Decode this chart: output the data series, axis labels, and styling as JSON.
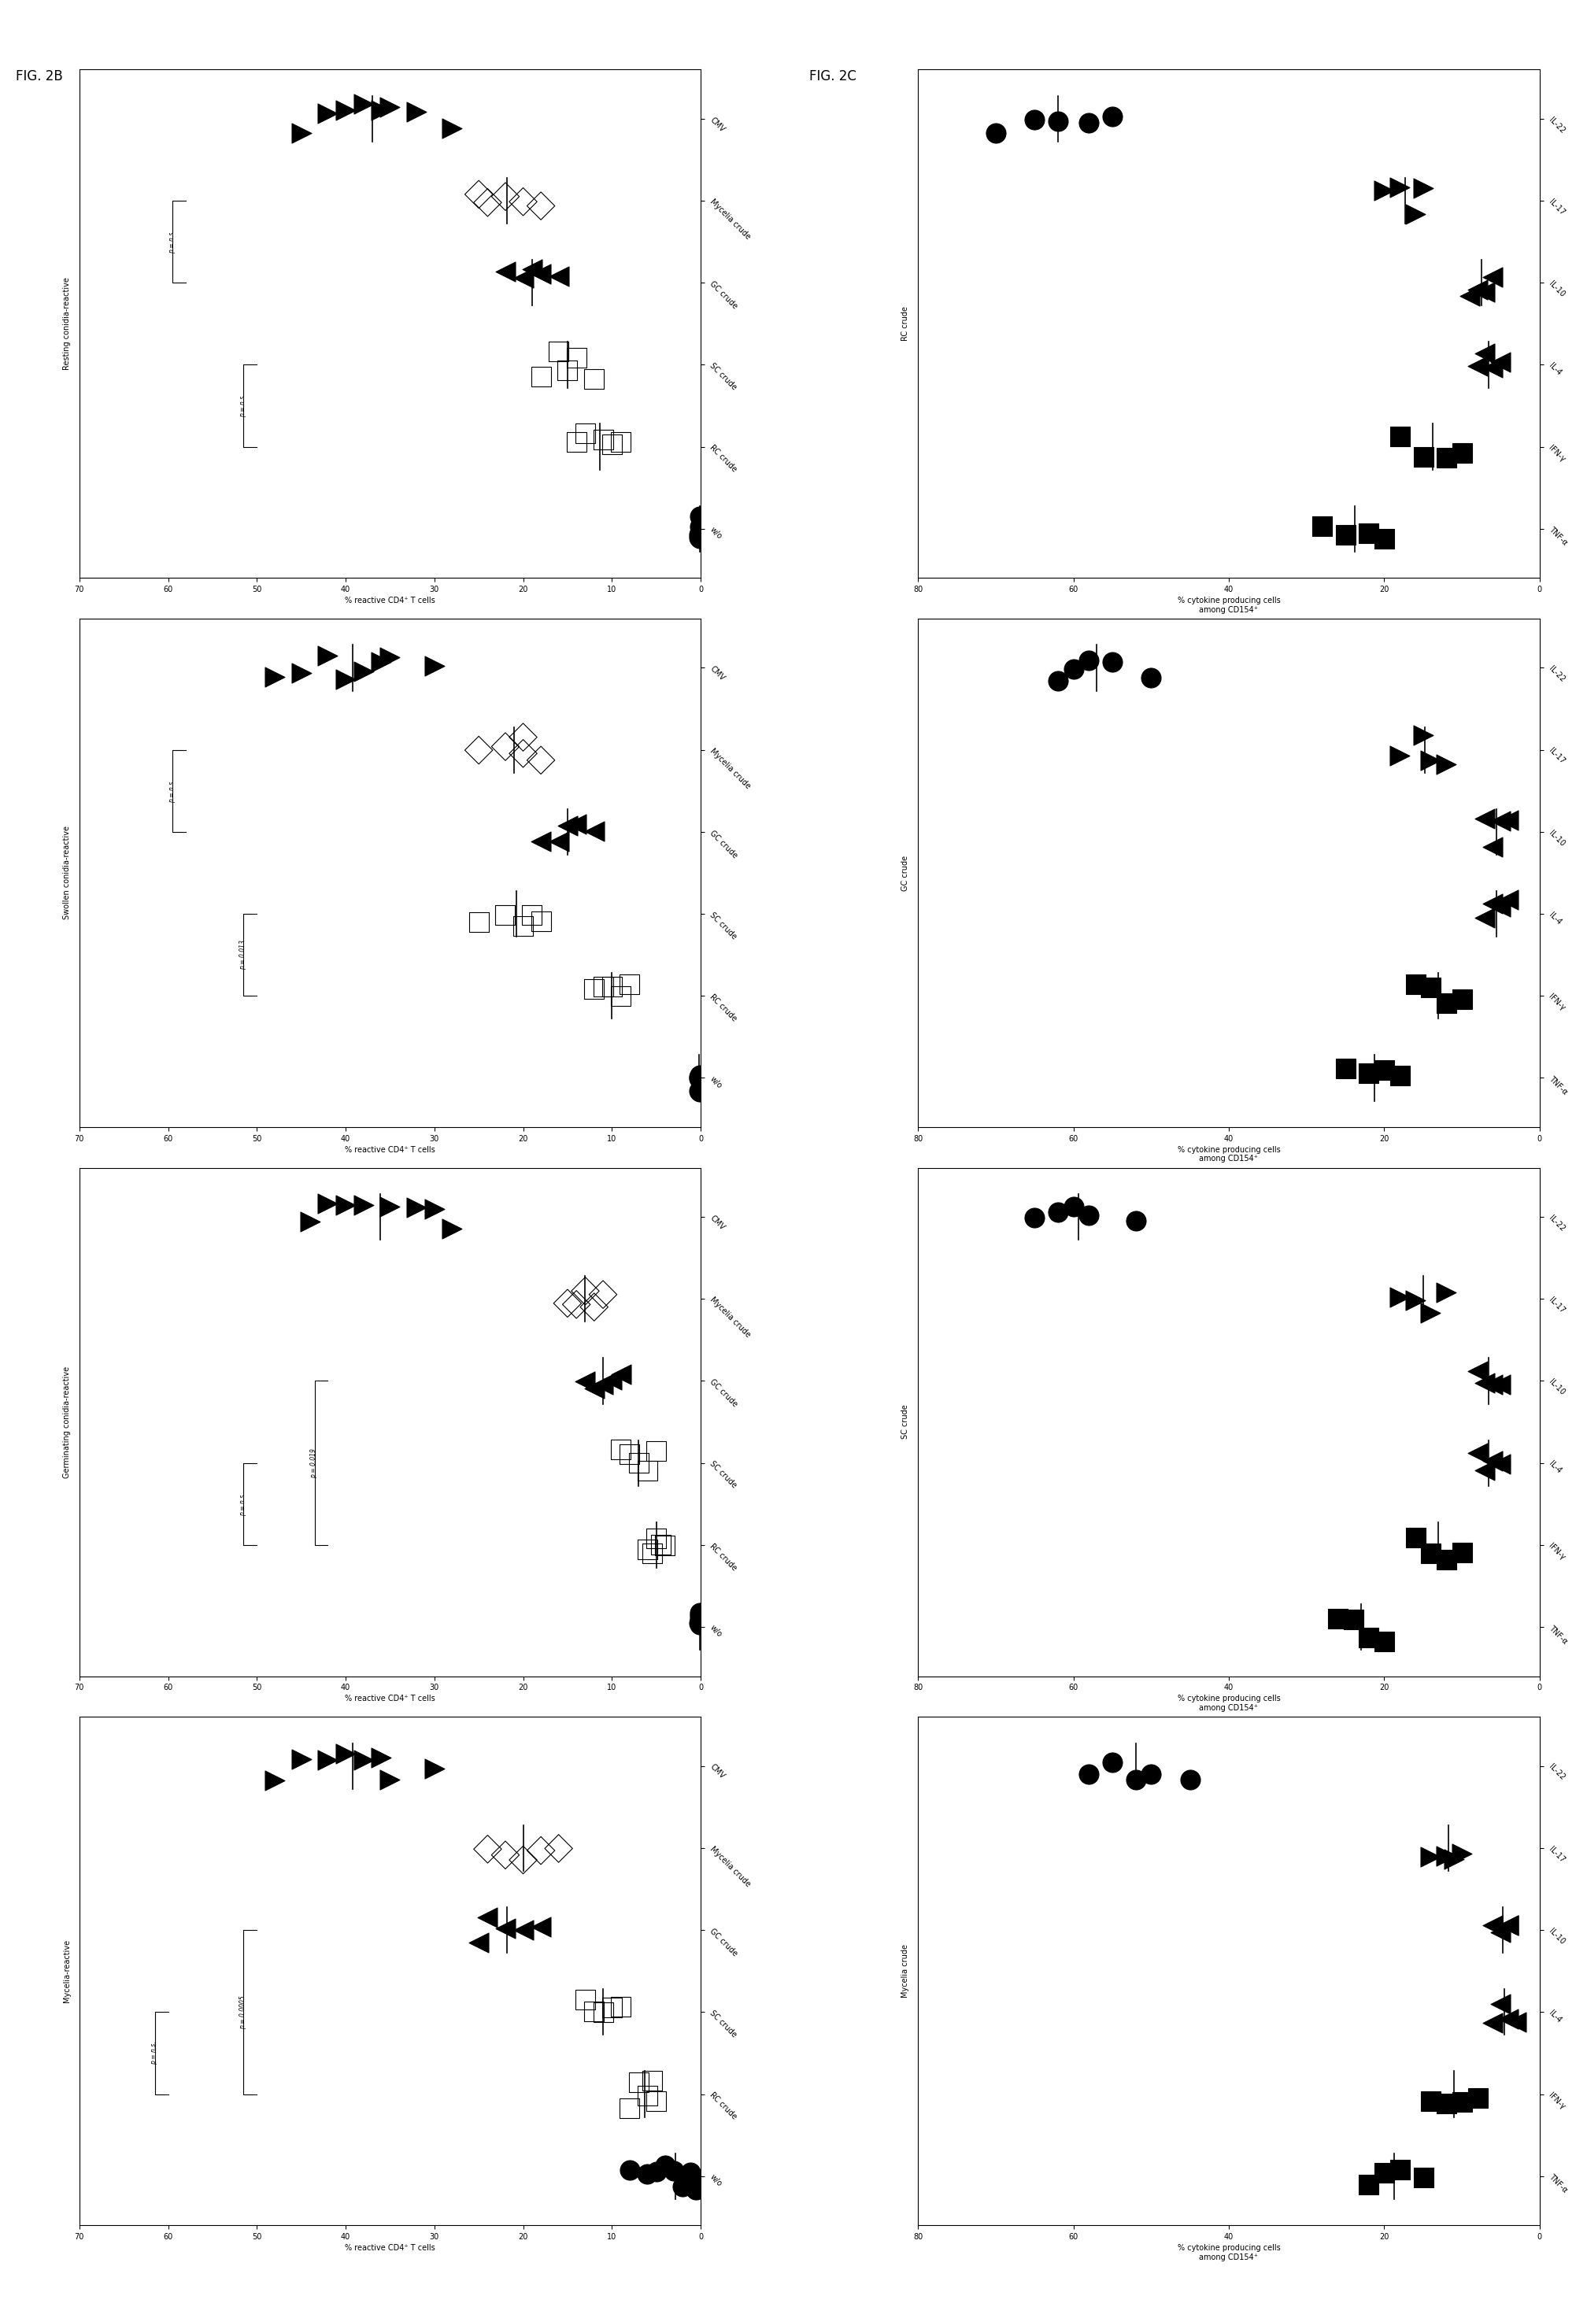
{
  "background_color": "#ffffff",
  "fig2b_panel_titles": [
    "Resting conidia-reactive",
    "Swollen conidia-reactive",
    "Germinating conidia-reactive",
    "Mycelia-reactive"
  ],
  "fig2c_panel_titles": [
    "RC crude",
    "GC crude",
    "SC crude",
    "Mycelia crude"
  ],
  "cats_2b": [
    "w/o",
    "RC crude",
    "SC crude",
    "GC crude",
    "Mycelia crude",
    "CMV"
  ],
  "cytokines_2c": [
    "TNF-α",
    "IFN-γ",
    "IL-4",
    "IL-10",
    "IL-17",
    "IL-22"
  ],
  "ylabel_2b": "% reactive CD4⁺ T cells",
  "ylabel_2c": "% cytokine producing cells\namong CD154⁺",
  "xlim_2b": [
    0,
    70
  ],
  "xlim_2c": [
    0,
    80
  ],
  "xticks_2b": [
    0,
    10,
    20,
    30,
    40,
    50,
    60,
    70
  ],
  "xticks_2c": [
    0,
    20,
    40,
    60,
    80
  ],
  "fig_label_2b": "FIG. 2B",
  "fig_label_2c": "FIG. 2C",
  "fig2b_data": [
    [
      [
        0.1,
        0.15,
        0.08,
        0.2,
        0.12
      ],
      [
        10,
        13,
        14,
        11,
        9
      ],
      [
        14,
        16,
        12,
        18,
        15
      ],
      [
        20,
        18,
        22,
        19,
        16
      ],
      [
        22,
        25,
        20,
        18,
        24
      ],
      [
        32,
        38,
        42,
        36,
        28,
        45,
        40,
        35
      ]
    ],
    [
      [
        0.1,
        0.2,
        0.15,
        0.1,
        0.18
      ],
      [
        8,
        12,
        10,
        9,
        11
      ],
      [
        20,
        25,
        18,
        22,
        19
      ],
      [
        15,
        18,
        12,
        16,
        14
      ],
      [
        20,
        22,
        18,
        25,
        20
      ],
      [
        35,
        42,
        38,
        45,
        30,
        48,
        40,
        36
      ]
    ],
    [
      [
        0.08,
        0.12,
        0.1,
        0.15,
        0.09
      ],
      [
        4,
        6,
        5,
        4.5,
        5.5
      ],
      [
        6,
        8,
        7,
        5,
        9
      ],
      [
        10,
        12,
        9,
        11,
        13
      ],
      [
        12,
        15,
        11,
        14,
        13
      ],
      [
        30,
        35,
        42,
        28,
        38,
        44,
        32,
        40
      ]
    ],
    [
      [
        0.5,
        1.0,
        0.8,
        1.2,
        0.7,
        2.0,
        1.5,
        3.0,
        4.0,
        5.0,
        6.0,
        8.0
      ],
      [
        5,
        7,
        6,
        8,
        5.5
      ],
      [
        10,
        12,
        9,
        11,
        13
      ],
      [
        20,
        25,
        22,
        18,
        24
      ],
      [
        18,
        22,
        20,
        16,
        24
      ],
      [
        35,
        42,
        38,
        45,
        30,
        48,
        40,
        36
      ]
    ]
  ],
  "fig2c_data": [
    [
      [
        20,
        25,
        28,
        22
      ],
      [
        12,
        15,
        18,
        10
      ],
      [
        5,
        8,
        6,
        7
      ],
      [
        6,
        8,
        9,
        7
      ],
      [
        15,
        20,
        18,
        16
      ],
      [
        55,
        65,
        70,
        58,
        62
      ]
    ],
    [
      [
        18,
        22,
        25,
        20
      ],
      [
        10,
        14,
        16,
        12
      ],
      [
        4,
        6,
        5,
        7
      ],
      [
        4,
        5,
        7,
        6
      ],
      [
        12,
        18,
        15,
        14
      ],
      [
        50,
        58,
        62,
        55,
        60
      ]
    ],
    [
      [
        20,
        24,
        26,
        22
      ],
      [
        12,
        16,
        14,
        10
      ],
      [
        5,
        7,
        6,
        8
      ],
      [
        6,
        7,
        8,
        5
      ],
      [
        14,
        18,
        16,
        12
      ],
      [
        52,
        60,
        65,
        58,
        62
      ]
    ],
    [
      [
        15,
        20,
        22,
        18
      ],
      [
        8,
        12,
        14,
        10
      ],
      [
        3,
        5,
        4,
        6
      ],
      [
        4,
        5,
        6,
        4
      ],
      [
        10,
        14,
        12,
        11
      ],
      [
        45,
        52,
        58,
        50,
        55
      ]
    ]
  ],
  "annotations_2b": [
    [
      [
        "p = n.s.",
        1,
        2,
        52,
        50
      ],
      [
        "p = n.s.",
        3,
        4,
        60,
        58
      ]
    ],
    [
      [
        "p = 0.013",
        1,
        2,
        52,
        50
      ],
      [
        "p = n.s.",
        3,
        4,
        60,
        58
      ]
    ],
    [
      [
        "p = n.s.",
        1,
        2,
        52,
        50
      ],
      [
        "p = 0.019",
        1,
        3,
        44,
        42
      ]
    ],
    [
      [
        "p = n.s.",
        1,
        2,
        62,
        60
      ],
      [
        "p = 0.0005",
        1,
        3,
        52,
        50
      ]
    ]
  ],
  "cat_markers_2b": [
    [
      "o",
      "black",
      "black"
    ],
    [
      "s",
      "none",
      "black"
    ],
    [
      "s",
      "none",
      "black"
    ],
    [
      "<",
      "black",
      "black"
    ],
    [
      "D",
      "none",
      "black"
    ],
    [
      ">",
      "black",
      "black"
    ]
  ],
  "cat_markers_2c": [
    [
      "s",
      "black",
      "black"
    ],
    [
      "s",
      "black",
      "black"
    ],
    [
      "<",
      "black",
      "black"
    ],
    [
      "<",
      "black",
      "black"
    ],
    [
      ">",
      "black",
      "black"
    ],
    [
      "o",
      "black",
      "black"
    ]
  ]
}
